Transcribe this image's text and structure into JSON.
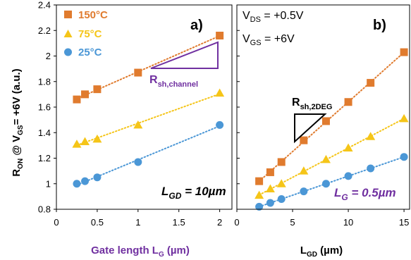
{
  "colors": {
    "s150": "#E07B2E",
    "s75": "#F5C518",
    "s25": "#4B97D6",
    "purple": "#7030A0",
    "black": "#000000"
  },
  "chart_data": [
    {
      "panel": "a)",
      "type": "scatter",
      "xlabel": "Gate length L",
      "xlabel_sub": "G",
      "xlabel_unit": " (µm)",
      "ylabel": "R",
      "ylabel_sub1": "ON",
      "ylabel_mid": " @ V",
      "ylabel_sub2": "GS",
      "ylabel_tail": "= +6V (a.u.)",
      "xlim": [
        0,
        2.15
      ],
      "ylim": [
        0.8,
        2.4
      ],
      "xticks": [
        "0",
        "0.5",
        "1",
        "1.5",
        "2"
      ],
      "xtick_values": [
        0,
        0.5,
        1,
        1.5,
        2
      ],
      "yticks": [
        "0.8",
        "1",
        "1.2",
        "1.4",
        "1.6",
        "1.8",
        "2",
        "2.2",
        "2.4"
      ],
      "ytick_values": [
        0.8,
        1.0,
        1.2,
        1.4,
        1.6,
        1.8,
        2.0,
        2.2,
        2.4
      ],
      "grid": false,
      "legend": "top-left",
      "trendlines": "dotted linear fit per series",
      "series": [
        {
          "name": "150°C",
          "marker": "square",
          "color": "#E07B2E",
          "x": [
            0.25,
            0.35,
            0.5,
            1.0,
            2.0
          ],
          "y": [
            1.66,
            1.7,
            1.74,
            1.87,
            2.16
          ]
        },
        {
          "name": "75°C",
          "marker": "triangle",
          "color": "#F5C518",
          "x": [
            0.25,
            0.35,
            0.5,
            1.0,
            2.0
          ],
          "y": [
            1.31,
            1.33,
            1.35,
            1.46,
            1.71
          ]
        },
        {
          "name": "25°C",
          "marker": "circle",
          "color": "#4B97D6",
          "x": [
            0.25,
            0.35,
            0.5,
            1.0,
            2.0
          ],
          "y": [
            1.0,
            1.02,
            1.05,
            1.17,
            1.46
          ]
        }
      ],
      "annotations": {
        "rsh_main": "R",
        "rsh_sub": "sh,channel",
        "lgd_main": "L",
        "lgd_sub": "GD",
        "lgd_value": " = 10µm"
      }
    },
    {
      "panel": "b)",
      "type": "scatter",
      "xlabel": "L",
      "xlabel_sub": "GD",
      "xlabel_unit": " (µm)",
      "xlim": [
        0,
        15.5
      ],
      "ylim": [
        0.8,
        2.4
      ],
      "xticks": [
        "0",
        "5",
        "10",
        "15"
      ],
      "xtick_values": [
        0,
        5,
        10,
        15
      ],
      "grid": false,
      "trendlines": "dotted linear fit per series",
      "series": [
        {
          "name": "150°C",
          "marker": "square",
          "color": "#E07B2E",
          "x": [
            2,
            3,
            4,
            6,
            8,
            10,
            12,
            15
          ],
          "y": [
            1.02,
            1.09,
            1.17,
            1.34,
            1.49,
            1.64,
            1.79,
            2.03
          ]
        },
        {
          "name": "75°C",
          "marker": "triangle",
          "color": "#F5C518",
          "x": [
            2,
            3,
            4,
            6,
            8,
            10,
            12,
            15
          ],
          "y": [
            0.91,
            0.96,
            1.0,
            1.1,
            1.19,
            1.28,
            1.37,
            1.51
          ]
        },
        {
          "name": "25°C",
          "marker": "circle",
          "color": "#4B97D6",
          "x": [
            2,
            3,
            4,
            6,
            8,
            10,
            12,
            15
          ],
          "y": [
            0.82,
            0.85,
            0.88,
            0.94,
            1.0,
            1.06,
            1.12,
            1.21
          ]
        }
      ],
      "conditions": {
        "vds_main": "V",
        "vds_sub": "DS",
        "vds_value": " = +0.5V",
        "vgs_main": "V",
        "vgs_sub": "GS",
        "vgs_value": " = +6V"
      },
      "annotations": {
        "rsh_main": "R",
        "rsh_sub": "sh,2DEG",
        "lg_main": "L",
        "lg_sub": "G",
        "lg_value": " = 0.5µm"
      }
    }
  ]
}
